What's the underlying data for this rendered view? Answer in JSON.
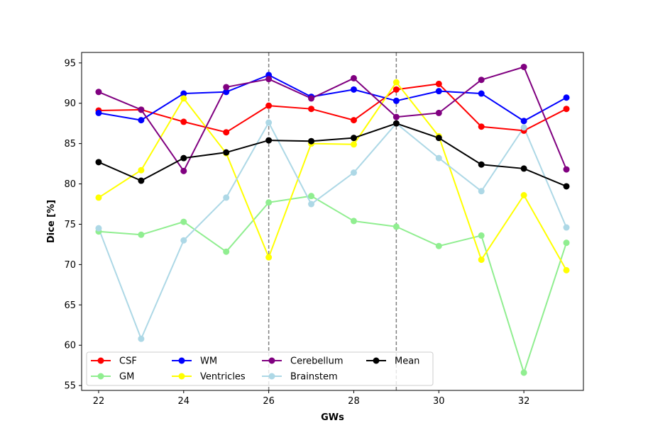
{
  "chart_data": {
    "type": "line",
    "title": "",
    "xlabel": "GWs",
    "ylabel": "Dice [%]",
    "xlim": [
      21.6,
      33.4
    ],
    "ylim": [
      54.4,
      96.3
    ],
    "xticks": [
      22,
      24,
      26,
      28,
      30,
      32
    ],
    "yticks": [
      55,
      60,
      65,
      70,
      75,
      80,
      85,
      90,
      95
    ],
    "x": [
      22,
      23,
      24,
      25,
      26,
      27,
      28,
      29,
      30,
      31,
      32,
      33
    ],
    "vlines": [
      26,
      29
    ],
    "vline_color": "#808080",
    "grid": false,
    "legend_position": "lower-left",
    "series": [
      {
        "name": "CSF",
        "color": "#ff0000",
        "values": [
          89.1,
          89.2,
          87.7,
          86.4,
          89.7,
          89.3,
          87.9,
          91.7,
          92.4,
          87.1,
          86.6,
          89.3
        ]
      },
      {
        "name": "GM",
        "color": "#90ee90",
        "values": [
          74.1,
          73.7,
          75.3,
          71.6,
          77.7,
          78.5,
          75.4,
          74.7,
          72.3,
          73.6,
          56.6,
          72.7
        ]
      },
      {
        "name": "WM",
        "color": "#0000ff",
        "values": [
          88.8,
          87.9,
          91.2,
          91.4,
          93.5,
          90.8,
          91.7,
          90.3,
          91.5,
          91.2,
          87.8,
          90.7
        ]
      },
      {
        "name": "Ventricles",
        "color": "#ffff00",
        "values": [
          78.3,
          81.7,
          90.6,
          83.8,
          70.9,
          85.0,
          84.9,
          92.6,
          85.9,
          70.6,
          78.6,
          69.3
        ]
      },
      {
        "name": "Cerebellum",
        "color": "#800080",
        "values": [
          91.4,
          89.2,
          81.6,
          92.0,
          93.0,
          90.6,
          93.1,
          88.3,
          88.8,
          92.9,
          94.5,
          81.8
        ]
      },
      {
        "name": "Brainstem",
        "color": "#add8e6",
        "values": [
          74.5,
          60.8,
          73.0,
          78.3,
          87.6,
          77.5,
          81.4,
          87.5,
          83.2,
          79.1,
          87.0,
          74.6
        ]
      },
      {
        "name": "Mean",
        "color": "#000000",
        "values": [
          82.7,
          80.4,
          83.2,
          83.9,
          85.4,
          85.3,
          85.7,
          87.5,
          85.7,
          82.4,
          81.9,
          79.7
        ]
      }
    ]
  }
}
